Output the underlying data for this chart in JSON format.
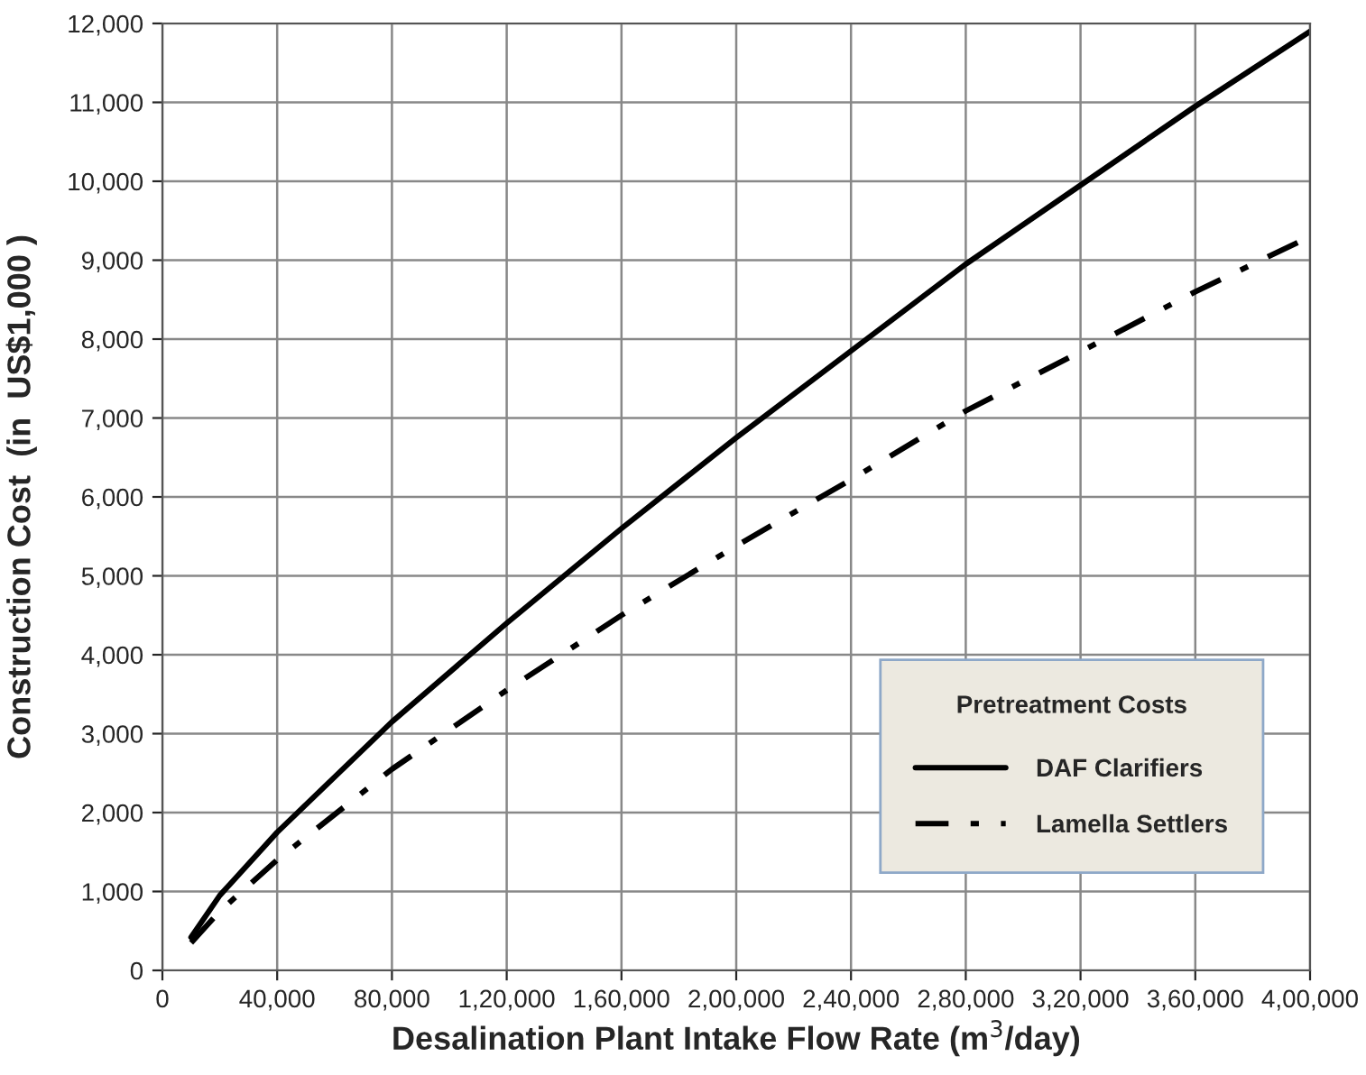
{
  "chart_data": {
    "type": "line",
    "xlabel": "Desalination Plant Intake Flow Rate (m$^{3}$/day)",
    "ylabel": "Construction Cost  (in  US$1,000 )",
    "legend_title": "Pretreatment Costs",
    "x": [
      10000,
      20000,
      40000,
      80000,
      120000,
      160000,
      200000,
      240000,
      280000,
      320000,
      360000,
      400000
    ],
    "series": [
      {
        "name": "DAF Clarifiers",
        "color": "#000000",
        "line_style": "solid",
        "values": [
          420,
          950,
          1750,
          3150,
          4400,
          5600,
          6750,
          7850,
          8950,
          9950,
          10950,
          11900
        ]
      },
      {
        "name": "Lamella Settlers",
        "color": "#000000",
        "line_style": "dashdot",
        "values": [
          350,
          750,
          1400,
          2550,
          3550,
          4500,
          5380,
          6220,
          7090,
          7840,
          8600,
          9300
        ]
      }
    ],
    "xlim": [
      0,
      400000
    ],
    "xticks": [
      0,
      {
        "value": 40000,
        "label": "40,000"
      },
      {
        "value": 80000,
        "label": "80,000"
      },
      {
        "value": 120000,
        "label": "1,20,000"
      },
      {
        "value": 160000,
        "label": "1,60,000"
      },
      {
        "value": 200000,
        "label": "2,00,000"
      },
      {
        "value": 240000,
        "label": "2,40,000"
      },
      {
        "value": 280000,
        "label": "2,80,000"
      },
      {
        "value": 320000,
        "label": "3,20,000"
      },
      {
        "value": 360000,
        "label": "3,60,000"
      },
      {
        "value": 400000,
        "label": "4,00,000"
      }
    ],
    "ylim": [
      0,
      12000
    ],
    "yticks": [
      0,
      {
        "value": 1000,
        "label": "1,000"
      },
      {
        "value": 2000,
        "label": "2,000"
      },
      {
        "value": 3000,
        "label": "3,000"
      },
      {
        "value": 4000,
        "label": "4,000"
      },
      {
        "value": 5000,
        "label": "5,000"
      },
      {
        "value": 6000,
        "label": "6,000"
      },
      {
        "value": 7000,
        "label": "7,000"
      },
      {
        "value": 8000,
        "label": "8,000"
      },
      {
        "value": 9000,
        "label": "9,000"
      },
      {
        "value": 10000,
        "label": "10,000"
      },
      {
        "value": 11000,
        "label": "11,000"
      },
      {
        "value": 12000,
        "label": "12,000"
      }
    ],
    "grid": true,
    "legend": "bottom right"
  }
}
